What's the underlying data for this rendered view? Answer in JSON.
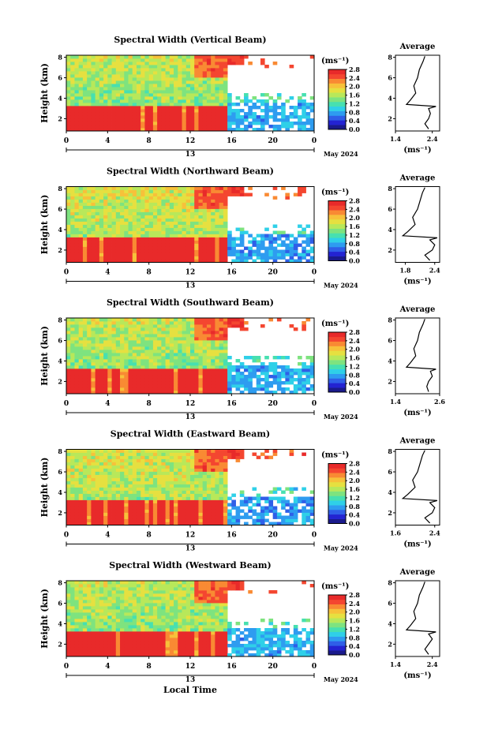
{
  "figure": {
    "x_common_label": "Local Time",
    "cbar_unit": "(ms⁻¹)",
    "avg_title": "Average",
    "avg_unit": "(ms⁻¹)",
    "date_label": "May 2024",
    "day_label": "13",
    "ylabel": "Height (km)",
    "colormap": [
      "#1a1a8c",
      "#2323d2",
      "#2f5fe8",
      "#2e9cf0",
      "#2fd0e8",
      "#47e0b0",
      "#7ee37f",
      "#b8e85a",
      "#e6e040",
      "#f7c13a",
      "#f98a33",
      "#f44630",
      "#e82a2a"
    ],
    "missing_color": "#ffffff"
  },
  "chart_data": [
    {
      "type": "heatmap",
      "title": "Spectral Width (Vertical Beam)",
      "xlabel": "",
      "ylabel": "Height (km)",
      "xlim": [
        0,
        24
      ],
      "ylim": [
        0.8,
        8.2
      ],
      "xticks": [
        "0",
        "4",
        "8",
        "12",
        "16",
        "20",
        "0"
      ],
      "yticks": [
        "2",
        "4",
        "6",
        "8"
      ],
      "colorbar": {
        "ticks": [
          "0.0",
          "0.4",
          "0.8",
          "1.2",
          "1.6",
          "2.0",
          "2.4",
          "2.8"
        ],
        "range": [
          0,
          2.8
        ]
      },
      "regions": {
        "boundary_km": 3.2,
        "upper_value": 1.5,
        "lower_value": 2.8,
        "cutoff_hour": 15.6,
        "late_upper_value": 0.9
      },
      "average": {
        "xlim": [
          1.4,
          2.6
        ],
        "xticks": [
          "1.4",
          "2.4"
        ],
        "yticks": [
          "2",
          "4",
          "6",
          "8"
        ],
        "profile": [
          [
            2.3,
            1.0
          ],
          [
            2.2,
            1.5
          ],
          [
            2.3,
            2.0
          ],
          [
            2.35,
            2.5
          ],
          [
            2.3,
            3.0
          ],
          [
            2.5,
            3.2
          ],
          [
            1.7,
            3.4
          ],
          [
            1.8,
            3.8
          ],
          [
            1.95,
            4.5
          ],
          [
            1.9,
            5.2
          ],
          [
            2.0,
            6.0
          ],
          [
            2.05,
            6.8
          ],
          [
            2.15,
            7.6
          ],
          [
            2.2,
            8.1
          ]
        ]
      }
    },
    {
      "type": "heatmap",
      "title": "Spectral Width (Northward Beam)",
      "xlabel": "",
      "ylabel": "Height (km)",
      "xlim": [
        0,
        24
      ],
      "ylim": [
        0.8,
        8.2
      ],
      "xticks": [
        "0",
        "4",
        "8",
        "12",
        "16",
        "20",
        "0"
      ],
      "yticks": [
        "2",
        "4",
        "6",
        "8"
      ],
      "colorbar": {
        "ticks": [
          "0.0",
          "0.4",
          "0.8",
          "1.2",
          "1.6",
          "2.0",
          "2.4",
          "2.8"
        ],
        "range": [
          0,
          2.8
        ]
      },
      "regions": {
        "boundary_km": 3.2,
        "upper_value": 1.6,
        "lower_value": 2.8,
        "cutoff_hour": 15.6,
        "late_upper_value": 0.8
      },
      "average": {
        "xlim": [
          1.6,
          2.5
        ],
        "xticks": [
          "1.8",
          "2.4"
        ],
        "yticks": [
          "2",
          "4",
          "6",
          "8"
        ],
        "profile": [
          [
            2.3,
            1.0
          ],
          [
            2.2,
            1.5
          ],
          [
            2.35,
            2.0
          ],
          [
            2.4,
            2.5
          ],
          [
            2.3,
            3.0
          ],
          [
            2.45,
            3.2
          ],
          [
            1.75,
            3.4
          ],
          [
            1.85,
            3.8
          ],
          [
            2.0,
            4.5
          ],
          [
            1.95,
            5.2
          ],
          [
            2.05,
            6.0
          ],
          [
            2.1,
            6.8
          ],
          [
            2.15,
            7.6
          ],
          [
            2.2,
            8.1
          ]
        ]
      }
    },
    {
      "type": "heatmap",
      "title": "Spectral Width (Southward Beam)",
      "xlabel": "",
      "ylabel": "Height (km)",
      "xlim": [
        0,
        24
      ],
      "ylim": [
        0.8,
        8.2
      ],
      "xticks": [
        "0",
        "4",
        "8",
        "12",
        "16",
        "20",
        "0"
      ],
      "yticks": [
        "2",
        "4",
        "6",
        "8"
      ],
      "colorbar": {
        "ticks": [
          "0.0",
          "0.4",
          "0.8",
          "1.2",
          "1.6",
          "2.0",
          "2.4",
          "2.8"
        ],
        "range": [
          0,
          2.8
        ]
      },
      "regions": {
        "boundary_km": 3.2,
        "upper_value": 1.5,
        "lower_value": 2.8,
        "cutoff_hour": 15.6,
        "late_upper_value": 0.9
      },
      "average": {
        "xlim": [
          1.4,
          2.6
        ],
        "xticks": [
          "1.4",
          "2.6"
        ],
        "yticks": [
          "2",
          "4",
          "6",
          "8"
        ],
        "profile": [
          [
            2.3,
            1.0
          ],
          [
            2.25,
            1.5
          ],
          [
            2.3,
            2.0
          ],
          [
            2.4,
            2.5
          ],
          [
            2.35,
            3.0
          ],
          [
            2.5,
            3.2
          ],
          [
            1.7,
            3.4
          ],
          [
            1.8,
            3.8
          ],
          [
            1.95,
            4.5
          ],
          [
            1.9,
            5.2
          ],
          [
            2.0,
            6.0
          ],
          [
            2.05,
            6.8
          ],
          [
            2.15,
            7.6
          ],
          [
            2.2,
            8.1
          ]
        ]
      }
    },
    {
      "type": "heatmap",
      "title": "Spectral Width (Eastward Beam)",
      "xlabel": "",
      "ylabel": "Height (km)",
      "xlim": [
        0,
        24
      ],
      "ylim": [
        0.8,
        8.2
      ],
      "xticks": [
        "0",
        "4",
        "8",
        "12",
        "16",
        "20",
        "0"
      ],
      "yticks": [
        "2",
        "4",
        "6",
        "8"
      ],
      "colorbar": {
        "ticks": [
          "0.0",
          "0.4",
          "0.8",
          "1.2",
          "1.6",
          "2.0",
          "2.4",
          "2.8"
        ],
        "range": [
          0,
          2.8
        ]
      },
      "regions": {
        "boundary_km": 3.2,
        "upper_value": 1.6,
        "lower_value": 2.8,
        "cutoff_hour": 15.6,
        "late_upper_value": 0.8
      },
      "average": {
        "xlim": [
          1.6,
          2.5
        ],
        "xticks": [
          "1.6",
          "2.4"
        ],
        "yticks": [
          "2",
          "4",
          "6",
          "8"
        ],
        "profile": [
          [
            2.3,
            1.0
          ],
          [
            2.2,
            1.5
          ],
          [
            2.35,
            2.0
          ],
          [
            2.4,
            2.5
          ],
          [
            2.3,
            3.0
          ],
          [
            2.45,
            3.2
          ],
          [
            1.75,
            3.4
          ],
          [
            1.85,
            3.8
          ],
          [
            2.0,
            4.5
          ],
          [
            1.95,
            5.2
          ],
          [
            2.05,
            6.0
          ],
          [
            2.1,
            6.8
          ],
          [
            2.15,
            7.6
          ],
          [
            2.2,
            8.1
          ]
        ]
      }
    },
    {
      "type": "heatmap",
      "title": "Spectral Width (Westward Beam)",
      "xlabel": "Local Time",
      "ylabel": "Height (km)",
      "xlim": [
        0,
        24
      ],
      "ylim": [
        0.8,
        8.2
      ],
      "xticks": [
        "0",
        "4",
        "8",
        "12",
        "16",
        "20",
        "0"
      ],
      "yticks": [
        "2",
        "4",
        "6",
        "8"
      ],
      "colorbar": {
        "ticks": [
          "0.0",
          "0.4",
          "0.8",
          "1.2",
          "1.6",
          "2.0",
          "2.4",
          "2.8"
        ],
        "range": [
          0,
          2.8
        ]
      },
      "regions": {
        "boundary_km": 3.2,
        "upper_value": 1.5,
        "lower_value": 2.8,
        "cutoff_hour": 15.6,
        "late_upper_value": 0.9
      },
      "average": {
        "xlim": [
          1.4,
          2.6
        ],
        "xticks": [
          "1.4",
          "2.4"
        ],
        "yticks": [
          "2",
          "4",
          "6",
          "8"
        ],
        "profile": [
          [
            2.3,
            1.0
          ],
          [
            2.2,
            1.5
          ],
          [
            2.3,
            2.0
          ],
          [
            2.4,
            2.5
          ],
          [
            2.3,
            3.0
          ],
          [
            2.5,
            3.2
          ],
          [
            1.7,
            3.4
          ],
          [
            1.8,
            3.8
          ],
          [
            1.95,
            4.5
          ],
          [
            1.9,
            5.2
          ],
          [
            2.0,
            6.0
          ],
          [
            2.05,
            6.8
          ],
          [
            2.15,
            7.6
          ],
          [
            2.2,
            8.1
          ]
        ]
      }
    }
  ]
}
